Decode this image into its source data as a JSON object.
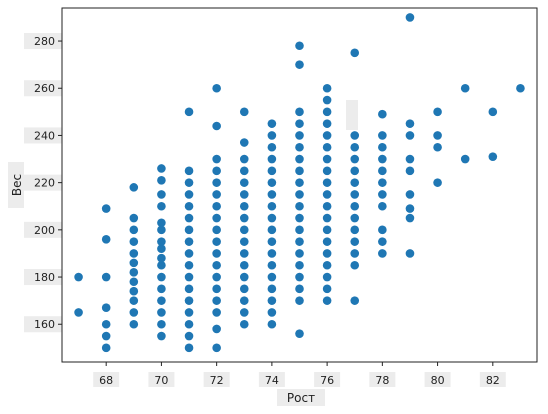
{
  "chart_data": {
    "type": "scatter",
    "title": "",
    "xlabel": "Рост",
    "ylabel": "Вес",
    "xlim": [
      66.4,
      83.6
    ],
    "ylim": [
      144,
      294
    ],
    "x_ticks": [
      68,
      70,
      72,
      74,
      76,
      78,
      80,
      82
    ],
    "y_ticks": [
      160,
      180,
      200,
      220,
      240,
      260,
      280
    ],
    "grid": false,
    "legend": "none",
    "marker_color": "#1f77b4",
    "points": [
      [
        67,
        165
      ],
      [
        67,
        180
      ],
      [
        68,
        150
      ],
      [
        68,
        155
      ],
      [
        68,
        160
      ],
      [
        68,
        167
      ],
      [
        68,
        180
      ],
      [
        68,
        196
      ],
      [
        68,
        209
      ],
      [
        69,
        160
      ],
      [
        69,
        165
      ],
      [
        69,
        170
      ],
      [
        69,
        174
      ],
      [
        69,
        178
      ],
      [
        69,
        182
      ],
      [
        69,
        186
      ],
      [
        69,
        190
      ],
      [
        69,
        195
      ],
      [
        69,
        200
      ],
      [
        69,
        205
      ],
      [
        69,
        218
      ],
      [
        70,
        155
      ],
      [
        70,
        160
      ],
      [
        70,
        165
      ],
      [
        70,
        170
      ],
      [
        70,
        175
      ],
      [
        70,
        180
      ],
      [
        70,
        185
      ],
      [
        70,
        188
      ],
      [
        70,
        192
      ],
      [
        70,
        195
      ],
      [
        70,
        200
      ],
      [
        70,
        203
      ],
      [
        70,
        210
      ],
      [
        70,
        215
      ],
      [
        70,
        221
      ],
      [
        70,
        226
      ],
      [
        71,
        150
      ],
      [
        71,
        155
      ],
      [
        71,
        160
      ],
      [
        71,
        165
      ],
      [
        71,
        170
      ],
      [
        71,
        175
      ],
      [
        71,
        180
      ],
      [
        71,
        185
      ],
      [
        71,
        190
      ],
      [
        71,
        195
      ],
      [
        71,
        200
      ],
      [
        71,
        205
      ],
      [
        71,
        210
      ],
      [
        71,
        215
      ],
      [
        71,
        220
      ],
      [
        71,
        225
      ],
      [
        71,
        250
      ],
      [
        72,
        150
      ],
      [
        72,
        158
      ],
      [
        72,
        165
      ],
      [
        72,
        170
      ],
      [
        72,
        175
      ],
      [
        72,
        180
      ],
      [
        72,
        185
      ],
      [
        72,
        190
      ],
      [
        72,
        195
      ],
      [
        72,
        200
      ],
      [
        72,
        205
      ],
      [
        72,
        210
      ],
      [
        72,
        215
      ],
      [
        72,
        220
      ],
      [
        72,
        225
      ],
      [
        72,
        230
      ],
      [
        72,
        244
      ],
      [
        72,
        260
      ],
      [
        73,
        160
      ],
      [
        73,
        165
      ],
      [
        73,
        170
      ],
      [
        73,
        175
      ],
      [
        73,
        180
      ],
      [
        73,
        185
      ],
      [
        73,
        190
      ],
      [
        73,
        195
      ],
      [
        73,
        200
      ],
      [
        73,
        205
      ],
      [
        73,
        210
      ],
      [
        73,
        215
      ],
      [
        73,
        220
      ],
      [
        73,
        225
      ],
      [
        73,
        230
      ],
      [
        73,
        237
      ],
      [
        73,
        250
      ],
      [
        74,
        160
      ],
      [
        74,
        165
      ],
      [
        74,
        170
      ],
      [
        74,
        175
      ],
      [
        74,
        180
      ],
      [
        74,
        185
      ],
      [
        74,
        190
      ],
      [
        74,
        195
      ],
      [
        74,
        200
      ],
      [
        74,
        205
      ],
      [
        74,
        210
      ],
      [
        74,
        215
      ],
      [
        74,
        220
      ],
      [
        74,
        225
      ],
      [
        74,
        230
      ],
      [
        74,
        235
      ],
      [
        74,
        240
      ],
      [
        74,
        245
      ],
      [
        75,
        156
      ],
      [
        75,
        170
      ],
      [
        75,
        175
      ],
      [
        75,
        180
      ],
      [
        75,
        185
      ],
      [
        75,
        190
      ],
      [
        75,
        195
      ],
      [
        75,
        200
      ],
      [
        75,
        205
      ],
      [
        75,
        210
      ],
      [
        75,
        215
      ],
      [
        75,
        220
      ],
      [
        75,
        225
      ],
      [
        75,
        230
      ],
      [
        75,
        235
      ],
      [
        75,
        240
      ],
      [
        75,
        245
      ],
      [
        75,
        250
      ],
      [
        75,
        270
      ],
      [
        75,
        278
      ],
      [
        76,
        170
      ],
      [
        76,
        175
      ],
      [
        76,
        180
      ],
      [
        76,
        185
      ],
      [
        76,
        190
      ],
      [
        76,
        195
      ],
      [
        76,
        200
      ],
      [
        76,
        205
      ],
      [
        76,
        210
      ],
      [
        76,
        215
      ],
      [
        76,
        220
      ],
      [
        76,
        225
      ],
      [
        76,
        230
      ],
      [
        76,
        235
      ],
      [
        76,
        240
      ],
      [
        76,
        245
      ],
      [
        76,
        250
      ],
      [
        76,
        255
      ],
      [
        76,
        260
      ],
      [
        77,
        170
      ],
      [
        77,
        185
      ],
      [
        77,
        190
      ],
      [
        77,
        195
      ],
      [
        77,
        200
      ],
      [
        77,
        205
      ],
      [
        77,
        210
      ],
      [
        77,
        215
      ],
      [
        77,
        220
      ],
      [
        77,
        225
      ],
      [
        77,
        230
      ],
      [
        77,
        235
      ],
      [
        77,
        240
      ],
      [
        77,
        275
      ],
      [
        78,
        190
      ],
      [
        78,
        195
      ],
      [
        78,
        200
      ],
      [
        78,
        210
      ],
      [
        78,
        215
      ],
      [
        78,
        220
      ],
      [
        78,
        225
      ],
      [
        78,
        230
      ],
      [
        78,
        235
      ],
      [
        78,
        240
      ],
      [
        78,
        249
      ],
      [
        79,
        190
      ],
      [
        79,
        205
      ],
      [
        79,
        209
      ],
      [
        79,
        215
      ],
      [
        79,
        225
      ],
      [
        79,
        230
      ],
      [
        79,
        240
      ],
      [
        79,
        245
      ],
      [
        79,
        290
      ],
      [
        80,
        220
      ],
      [
        80,
        235
      ],
      [
        80,
        240
      ],
      [
        80,
        250
      ],
      [
        81,
        230
      ],
      [
        81,
        260
      ],
      [
        82,
        231
      ],
      [
        82,
        250
      ],
      [
        83,
        260
      ]
    ]
  }
}
